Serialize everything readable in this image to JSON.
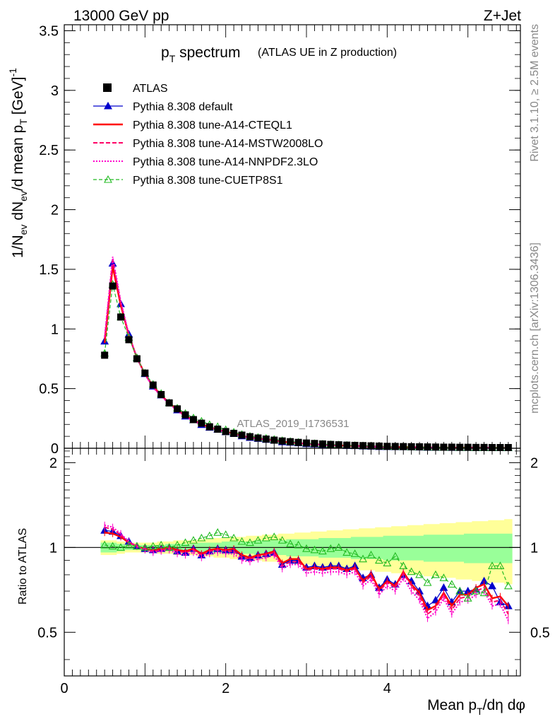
{
  "header": {
    "energy": "13000 GeV pp",
    "process": "Z+Jet",
    "side_top": "Rivet 3.1.10, ≥ 2.5M events",
    "side_bottom": "mcplots.cern.ch [arXiv:1306.3436]",
    "watermark": "ATLAS_2019_I1736531"
  },
  "chart_data": {
    "type": "line",
    "title": "p_T spectrum",
    "title_main": "p",
    "title_sub": "T",
    "title_rest": " spectrum",
    "subtitle": "(ATLAS UE in Z production)",
    "ylabel": "1/N_ev dN_ev/d mean p_T [GeV]^-1",
    "ratio_ylabel": "Ratio to ATLAS",
    "xlabel": "Mean p_T/dη dφ",
    "xlim": [
      0,
      5.65
    ],
    "ylim": [
      0,
      3.55
    ],
    "ratio_ylim": [
      0.35,
      2.25
    ],
    "main_y_ticks": [
      "0",
      "0.5",
      "1",
      "1.5",
      "2",
      "2.5",
      "3",
      "3.5"
    ],
    "ratio_y_ticks": [
      "0.5",
      "1",
      "2"
    ],
    "x_ticks": [
      "0",
      "2",
      "4"
    ],
    "legend_position": "top-left",
    "x": [
      0.5,
      0.6,
      0.7,
      0.8,
      0.9,
      1.0,
      1.1,
      1.2,
      1.3,
      1.4,
      1.5,
      1.6,
      1.7,
      1.8,
      1.9,
      2.0,
      2.1,
      2.2,
      2.3,
      2.4,
      2.5,
      2.6,
      2.7,
      2.8,
      2.9,
      3.0,
      3.1,
      3.2,
      3.3,
      3.4,
      3.5,
      3.6,
      3.7,
      3.8,
      3.9,
      4.0,
      4.1,
      4.2,
      4.3,
      4.4,
      4.5,
      4.6,
      4.7,
      4.8,
      4.9,
      5.0,
      5.1,
      5.2,
      5.3,
      5.4,
      5.5
    ],
    "series": [
      {
        "name": "ATLAS",
        "values": [
          0.78,
          1.36,
          1.1,
          0.91,
          0.75,
          0.63,
          0.53,
          0.45,
          0.38,
          0.33,
          0.28,
          0.24,
          0.21,
          0.18,
          0.16,
          0.14,
          0.125,
          0.11,
          0.097,
          0.086,
          0.077,
          0.068,
          0.061,
          0.055,
          0.049,
          0.044,
          0.04,
          0.036,
          0.032,
          0.029,
          0.026,
          0.024,
          0.022,
          0.02,
          0.018,
          0.016,
          0.015,
          0.014,
          0.013,
          0.012,
          0.011,
          0.01,
          0.009,
          0.009,
          0.008,
          0.008,
          0.007,
          0.007,
          0.006,
          0.006,
          0.006
        ],
        "ratio": [
          1,
          1,
          1,
          1,
          1,
          1,
          1,
          1,
          1,
          1,
          1,
          1,
          1,
          1,
          1,
          1,
          1,
          1,
          1,
          1,
          1,
          1,
          1,
          1,
          1,
          1,
          1,
          1,
          1,
          1,
          1,
          1,
          1,
          1,
          1,
          1,
          1,
          1,
          1,
          1,
          1,
          1,
          1,
          1,
          1,
          1,
          1,
          1,
          1,
          1,
          1
        ]
      },
      {
        "name": "Pythia 8.308 default",
        "ratio": [
          1.15,
          1.14,
          1.1,
          1.05,
          1.01,
          0.99,
          0.98,
          0.99,
          1.0,
          0.97,
          0.96,
          0.99,
          0.94,
          0.97,
          0.99,
          0.98,
          0.98,
          0.93,
          0.92,
          0.94,
          0.95,
          0.96,
          0.87,
          0.9,
          0.9,
          0.85,
          0.86,
          0.85,
          0.86,
          0.86,
          0.84,
          0.86,
          0.78,
          0.8,
          0.72,
          0.77,
          0.74,
          0.8,
          0.76,
          0.7,
          0.62,
          0.65,
          0.72,
          0.64,
          0.7,
          0.7,
          0.71,
          0.76,
          0.73,
          0.64,
          0.62
        ]
      },
      {
        "name": "Pythia 8.308 tune-A14-CTEQL1",
        "ratio": [
          1.13,
          1.12,
          1.09,
          1.04,
          1.01,
          0.99,
          0.98,
          0.99,
          1.0,
          0.98,
          0.97,
          0.99,
          0.95,
          0.98,
          0.99,
          0.98,
          0.99,
          0.94,
          0.92,
          0.94,
          0.95,
          0.97,
          0.88,
          0.91,
          0.91,
          0.84,
          0.85,
          0.84,
          0.85,
          0.85,
          0.83,
          0.85,
          0.76,
          0.81,
          0.71,
          0.76,
          0.73,
          0.82,
          0.74,
          0.69,
          0.6,
          0.62,
          0.69,
          0.62,
          0.68,
          0.68,
          0.72,
          0.74,
          0.66,
          0.67,
          0.62
        ]
      },
      {
        "name": "Pythia 8.308 tune-A14-MSTW2008LO",
        "ratio": [
          1.18,
          1.16,
          1.11,
          1.04,
          1.01,
          0.99,
          0.97,
          0.98,
          0.99,
          0.97,
          0.96,
          0.98,
          0.94,
          0.97,
          0.98,
          0.97,
          0.97,
          0.92,
          0.91,
          0.93,
          0.94,
          0.96,
          0.86,
          0.89,
          0.89,
          0.83,
          0.84,
          0.83,
          0.84,
          0.84,
          0.82,
          0.84,
          0.75,
          0.79,
          0.7,
          0.75,
          0.72,
          0.81,
          0.73,
          0.67,
          0.58,
          0.61,
          0.68,
          0.6,
          0.66,
          0.67,
          0.7,
          0.72,
          0.64,
          0.65,
          0.58
        ]
      },
      {
        "name": "Pythia 8.308 tune-A14-NNPDF2.3LO",
        "ratio": [
          1.2,
          1.18,
          1.12,
          1.05,
          1.01,
          0.98,
          0.96,
          0.97,
          0.98,
          0.95,
          0.94,
          0.96,
          0.92,
          0.95,
          0.96,
          0.95,
          0.95,
          0.9,
          0.89,
          0.91,
          0.92,
          0.94,
          0.84,
          0.87,
          0.87,
          0.81,
          0.82,
          0.81,
          0.82,
          0.82,
          0.8,
          0.82,
          0.73,
          0.77,
          0.68,
          0.73,
          0.7,
          0.78,
          0.7,
          0.65,
          0.56,
          0.59,
          0.66,
          0.58,
          0.64,
          0.65,
          0.68,
          0.7,
          0.62,
          0.63,
          0.55
        ]
      },
      {
        "name": "Pythia 8.308 tune-CUETP8S1",
        "ratio": [
          1.02,
          1.01,
          1.0,
          1.02,
          1.01,
          1.0,
          1.01,
          1.02,
          1.0,
          1.02,
          1.04,
          1.06,
          1.08,
          1.1,
          1.13,
          1.11,
          1.08,
          1.05,
          1.04,
          1.06,
          1.08,
          1.09,
          1.06,
          1.03,
          1.02,
          0.99,
          0.98,
          0.97,
          0.99,
          1.0,
          0.96,
          0.95,
          0.91,
          0.94,
          0.9,
          0.88,
          0.93,
          0.86,
          0.82,
          0.8,
          0.75,
          0.8,
          0.78,
          0.74,
          0.7,
          0.66,
          0.7,
          0.69,
          0.86,
          0.86,
          0.73
        ]
      }
    ],
    "band_inner": [
      0.04,
      0.04,
      0.03,
      0.02,
      0.02,
      0.02,
      0.02,
      0.02,
      0.03,
      0.03,
      0.03,
      0.03,
      0.04,
      0.04,
      0.04,
      0.05,
      0.05,
      0.05,
      0.05,
      0.06,
      0.06,
      0.06,
      0.06,
      0.07,
      0.07,
      0.07,
      0.07,
      0.08,
      0.08,
      0.08,
      0.08,
      0.09,
      0.09,
      0.09,
      0.09,
      0.1,
      0.1,
      0.1,
      0.1,
      0.1,
      0.11,
      0.11,
      0.11,
      0.11,
      0.11,
      0.12,
      0.12,
      0.12,
      0.12,
      0.12,
      0.12
    ],
    "band_outer": [
      0.06,
      0.06,
      0.05,
      0.04,
      0.04,
      0.04,
      0.04,
      0.05,
      0.05,
      0.06,
      0.06,
      0.06,
      0.07,
      0.07,
      0.08,
      0.08,
      0.09,
      0.09,
      0.1,
      0.1,
      0.11,
      0.11,
      0.12,
      0.12,
      0.13,
      0.13,
      0.14,
      0.14,
      0.15,
      0.15,
      0.16,
      0.16,
      0.17,
      0.17,
      0.18,
      0.18,
      0.19,
      0.19,
      0.2,
      0.2,
      0.21,
      0.21,
      0.22,
      0.22,
      0.23,
      0.23,
      0.24,
      0.24,
      0.25,
      0.25,
      0.26
    ],
    "colors": {
      "ATLAS": "#000000",
      "default": "#0000cc",
      "cteql1": "#ff0000",
      "mstw": "#ff0066",
      "nnpdf": "#ff00cc",
      "cuetp8s1": "#22bb22",
      "band_inner": "#99ff99",
      "band_outer": "#ffff99"
    }
  }
}
